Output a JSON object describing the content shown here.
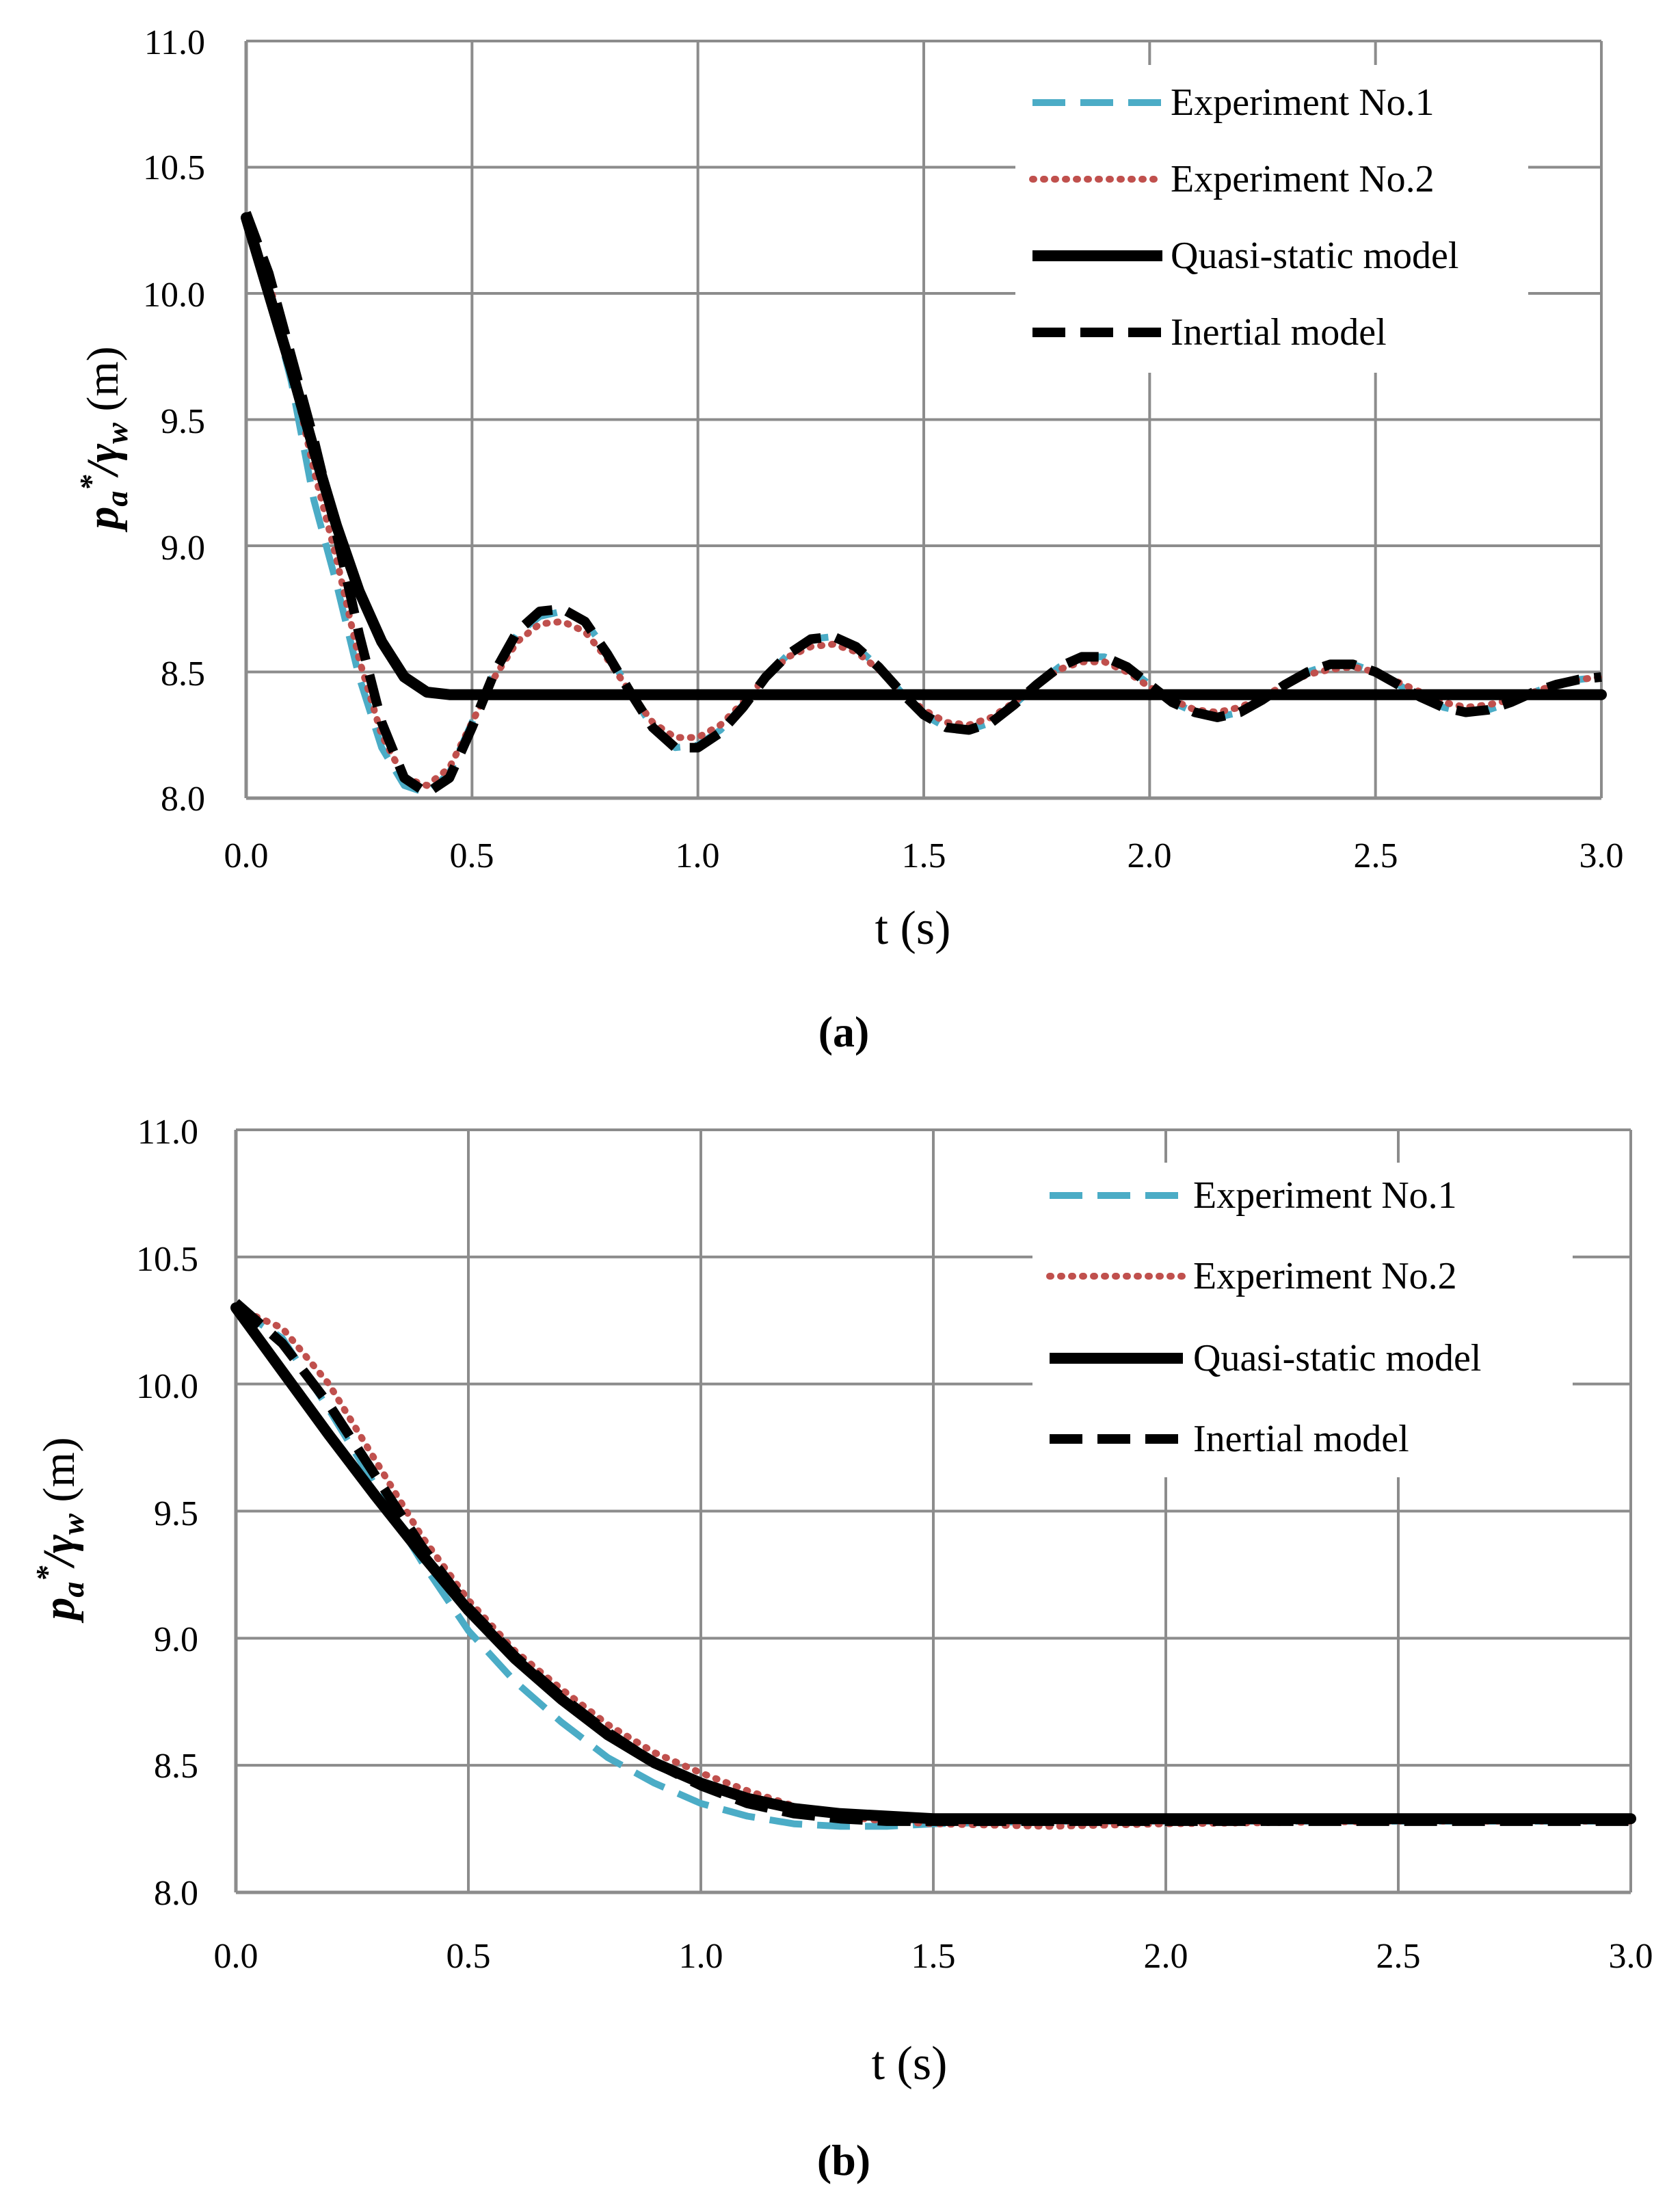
{
  "chart_data": [
    {
      "type": "line",
      "panel": "(a)",
      "caption": "(a)",
      "xlabel": "t (s)",
      "ylabel": {
        "p": "p",
        "sub_a": "a",
        "star": "*",
        "slash": "/",
        "gamma": "γ",
        "sub_w": "w",
        "unit": " (m)"
      },
      "xlim": [
        0.0,
        3.0
      ],
      "ylim": [
        8.0,
        11.0
      ],
      "xticks": [
        "0.0",
        "0.5",
        "1.0",
        "1.5",
        "2.0",
        "2.5",
        "3.0"
      ],
      "yticks": [
        "8.0",
        "8.5",
        "9.0",
        "9.5",
        "10.0",
        "10.5",
        "11.0"
      ],
      "grid": true,
      "legend_position": "top-right",
      "legend": [
        "Experiment No.1",
        "Experiment No.2",
        "Quasi-static model",
        "Inertial model"
      ],
      "series": [
        {
          "name": "Experiment No.1",
          "style": "dashed",
          "color": "#4bacc6",
          "x": [
            0,
            0.05,
            0.1,
            0.15,
            0.2,
            0.25,
            0.3,
            0.35,
            0.4,
            0.45,
            0.5,
            0.55,
            0.6,
            0.65,
            0.7,
            0.75,
            0.8,
            0.85,
            0.9,
            0.95,
            1.0,
            1.05,
            1.1,
            1.15,
            1.2,
            1.25,
            1.3,
            1.35,
            1.4,
            1.45,
            1.5,
            1.55,
            1.6,
            1.65,
            1.7,
            1.75,
            1.8,
            1.85,
            1.9,
            1.95,
            2.0,
            2.05,
            2.1,
            2.15,
            2.2,
            2.25,
            2.3,
            2.35,
            2.4,
            2.45,
            2.5,
            2.55,
            2.6,
            2.65,
            2.7,
            2.75,
            2.8,
            2.85,
            2.9,
            2.95,
            3.0
          ],
          "y": [
            10.3,
            10.0,
            9.65,
            9.18,
            8.85,
            8.48,
            8.2,
            8.05,
            8.02,
            8.1,
            8.3,
            8.5,
            8.65,
            8.72,
            8.74,
            8.7,
            8.58,
            8.42,
            8.28,
            8.2,
            8.21,
            8.27,
            8.37,
            8.48,
            8.57,
            8.63,
            8.64,
            8.6,
            8.52,
            8.42,
            8.33,
            8.28,
            8.27,
            8.3,
            8.37,
            8.45,
            8.52,
            8.56,
            8.56,
            8.52,
            8.45,
            8.38,
            8.34,
            8.32,
            8.34,
            8.39,
            8.45,
            8.5,
            8.53,
            8.53,
            8.5,
            8.45,
            8.4,
            8.36,
            8.34,
            8.35,
            8.38,
            8.42,
            8.45,
            8.47,
            8.48
          ]
        },
        {
          "name": "Experiment No.2",
          "style": "dotted",
          "color": "#c0504d",
          "x": [
            0,
            0.05,
            0.1,
            0.15,
            0.2,
            0.25,
            0.3,
            0.35,
            0.4,
            0.45,
            0.5,
            0.55,
            0.6,
            0.65,
            0.7,
            0.75,
            0.8,
            0.85,
            0.9,
            0.95,
            1.0,
            1.05,
            1.1,
            1.15,
            1.2,
            1.25,
            1.3,
            1.35,
            1.4,
            1.45,
            1.5,
            1.55,
            1.6,
            1.65,
            1.7,
            1.75,
            1.8,
            1.85,
            1.9,
            1.95,
            2.0,
            2.05,
            2.1,
            2.15,
            2.2,
            2.25,
            2.3,
            2.35,
            2.4,
            2.45,
            2.5,
            2.55,
            2.6,
            2.65,
            2.7,
            2.75,
            2.8,
            2.85,
            2.9,
            2.95,
            3.0
          ],
          "y": [
            10.28,
            10.05,
            9.7,
            9.3,
            8.95,
            8.55,
            8.25,
            8.08,
            8.05,
            8.12,
            8.3,
            8.48,
            8.62,
            8.69,
            8.7,
            8.66,
            8.55,
            8.42,
            8.3,
            8.24,
            8.24,
            8.29,
            8.38,
            8.48,
            8.56,
            8.6,
            8.61,
            8.58,
            8.51,
            8.42,
            8.35,
            8.3,
            8.29,
            8.32,
            8.38,
            8.45,
            8.51,
            8.54,
            8.54,
            8.5,
            8.44,
            8.39,
            8.35,
            8.34,
            8.36,
            8.4,
            8.45,
            8.49,
            8.51,
            8.52,
            8.5,
            8.46,
            8.42,
            8.38,
            8.36,
            8.37,
            8.39,
            8.42,
            8.45,
            8.47,
            8.48
          ]
        },
        {
          "name": "Quasi-static model",
          "style": "solid",
          "color": "#000000",
          "x": [
            0,
            0.05,
            0.1,
            0.15,
            0.2,
            0.25,
            0.3,
            0.35,
            0.4,
            0.45,
            0.5,
            1.0,
            1.5,
            2.0,
            2.5,
            3.0
          ],
          "y": [
            10.3,
            10.0,
            9.7,
            9.38,
            9.08,
            8.82,
            8.62,
            8.48,
            8.42,
            8.41,
            8.41,
            8.41,
            8.41,
            8.41,
            8.41,
            8.41
          ]
        },
        {
          "name": "Inertial model",
          "style": "dashed",
          "color": "#000000",
          "x": [
            0,
            0.05,
            0.1,
            0.15,
            0.2,
            0.25,
            0.3,
            0.35,
            0.4,
            0.45,
            0.5,
            0.55,
            0.6,
            0.65,
            0.7,
            0.75,
            0.8,
            0.85,
            0.9,
            0.95,
            1.0,
            1.05,
            1.1,
            1.15,
            1.2,
            1.25,
            1.3,
            1.35,
            1.4,
            1.45,
            1.5,
            1.55,
            1.6,
            1.65,
            1.7,
            1.75,
            1.8,
            1.85,
            1.9,
            1.95,
            2.0,
            2.05,
            2.1,
            2.15,
            2.2,
            2.25,
            2.3,
            2.35,
            2.4,
            2.45,
            2.5,
            2.55,
            2.6,
            2.65,
            2.7,
            2.75,
            2.8,
            2.85,
            2.9,
            2.95,
            3.0
          ],
          "y": [
            10.32,
            10.08,
            9.75,
            9.42,
            9.05,
            8.65,
            8.3,
            8.08,
            8.02,
            8.08,
            8.28,
            8.5,
            8.66,
            8.74,
            8.75,
            8.7,
            8.57,
            8.42,
            8.28,
            8.2,
            8.2,
            8.26,
            8.36,
            8.48,
            8.57,
            8.63,
            8.64,
            8.6,
            8.52,
            8.42,
            8.33,
            8.28,
            8.27,
            8.3,
            8.37,
            8.45,
            8.52,
            8.56,
            8.56,
            8.52,
            8.45,
            8.38,
            8.34,
            8.32,
            8.34,
            8.39,
            8.45,
            8.5,
            8.53,
            8.53,
            8.5,
            8.45,
            8.4,
            8.36,
            8.34,
            8.35,
            8.38,
            8.42,
            8.45,
            8.47,
            8.48
          ]
        }
      ]
    },
    {
      "type": "line",
      "panel": "(b)",
      "caption": "(b)",
      "xlabel": "t (s)",
      "ylabel": {
        "p": "p",
        "sub_a": "a",
        "star": "*",
        "slash": "/",
        "gamma": "γ",
        "sub_w": "w",
        "unit": " (m)"
      },
      "xlim": [
        0.0,
        3.0
      ],
      "ylim": [
        8.0,
        11.0
      ],
      "xticks": [
        "0.0",
        "0.5",
        "1.0",
        "1.5",
        "2.0",
        "2.5",
        "3.0"
      ],
      "yticks": [
        "8.0",
        "8.5",
        "9.0",
        "9.5",
        "10.0",
        "10.5",
        "11.0"
      ],
      "grid": true,
      "legend_position": "top-right",
      "legend": [
        "Experiment No.1",
        "Experiment No.2",
        "Quasi-static model",
        "Inertial model"
      ],
      "series": [
        {
          "name": "Experiment No.1",
          "style": "dashed",
          "color": "#4bacc6",
          "x": [
            0,
            0.1,
            0.2,
            0.3,
            0.4,
            0.5,
            0.6,
            0.7,
            0.8,
            0.9,
            1.0,
            1.1,
            1.2,
            1.3,
            1.4,
            1.5,
            1.75,
            2.0,
            2.5,
            3.0
          ],
          "y": [
            10.3,
            10.18,
            9.9,
            9.6,
            9.3,
            9.03,
            8.83,
            8.67,
            8.53,
            8.43,
            8.35,
            8.3,
            8.27,
            8.26,
            8.26,
            8.27,
            8.28,
            8.28,
            8.28,
            8.28
          ]
        },
        {
          "name": "Experiment No.2",
          "style": "dotted",
          "color": "#c0504d",
          "x": [
            0,
            0.1,
            0.2,
            0.3,
            0.4,
            0.5,
            0.6,
            0.7,
            0.8,
            0.9,
            1.0,
            1.1,
            1.2,
            1.3,
            1.4,
            1.5,
            1.75,
            2.0,
            2.5,
            3.0
          ],
          "y": [
            10.3,
            10.22,
            10.0,
            9.7,
            9.4,
            9.15,
            8.95,
            8.8,
            8.66,
            8.55,
            8.47,
            8.4,
            8.34,
            8.3,
            8.28,
            8.27,
            8.26,
            8.27,
            8.28,
            8.28
          ]
        },
        {
          "name": "Quasi-static model",
          "style": "solid",
          "color": "#000000",
          "x": [
            0,
            0.1,
            0.2,
            0.3,
            0.4,
            0.5,
            0.6,
            0.7,
            0.8,
            0.9,
            1.0,
            1.1,
            1.2,
            1.3,
            1.4,
            1.5,
            1.75,
            2.0,
            2.5,
            3.0
          ],
          "y": [
            10.3,
            10.05,
            9.8,
            9.56,
            9.33,
            9.11,
            8.92,
            8.76,
            8.62,
            8.51,
            8.43,
            8.37,
            8.33,
            8.31,
            8.3,
            8.29,
            8.29,
            8.29,
            8.29,
            8.29
          ]
        },
        {
          "name": "Inertial model",
          "style": "dashed",
          "color": "#000000",
          "x": [
            0,
            0.1,
            0.2,
            0.3,
            0.4,
            0.5,
            0.6,
            0.7,
            0.8,
            0.9,
            1.0,
            1.1,
            1.2,
            1.3,
            1.4,
            1.5,
            1.75,
            2.0,
            2.5,
            3.0
          ],
          "y": [
            10.32,
            10.16,
            9.92,
            9.64,
            9.36,
            9.12,
            8.93,
            8.77,
            8.63,
            8.51,
            8.42,
            8.35,
            8.31,
            8.29,
            8.28,
            8.28,
            8.28,
            8.28,
            8.28,
            8.28
          ]
        }
      ]
    }
  ]
}
